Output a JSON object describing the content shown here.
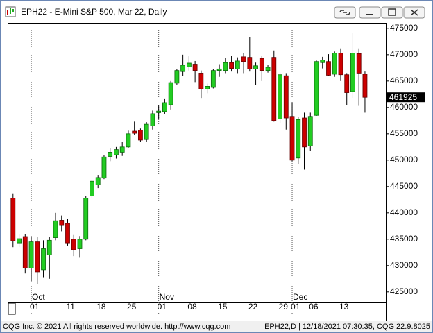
{
  "chart_data": {
    "type": "candlestick",
    "title": "EPH22 - E-Mini S&P 500, Mar 22, Daily",
    "categories": [
      null,
      null,
      null,
      "01",
      null,
      null,
      null,
      null,
      null,
      "11",
      null,
      null,
      null,
      null,
      "18",
      null,
      null,
      null,
      null,
      "25",
      null,
      null,
      null,
      null,
      "01",
      null,
      null,
      null,
      null,
      "08",
      null,
      null,
      null,
      null,
      "15",
      null,
      null,
      null,
      null,
      "22",
      null,
      null,
      null,
      null,
      "29",
      null,
      "01",
      null,
      null,
      "06",
      null,
      null,
      null,
      null,
      "13",
      null,
      null,
      null,
      null
    ],
    "month_labels": [
      null,
      null,
      null,
      "Oct",
      null,
      null,
      null,
      null,
      null,
      null,
      null,
      null,
      null,
      null,
      null,
      null,
      null,
      null,
      null,
      null,
      null,
      null,
      null,
      null,
      "Nov",
      null,
      null,
      null,
      null,
      null,
      null,
      null,
      null,
      null,
      null,
      null,
      null,
      null,
      null,
      null,
      null,
      null,
      null,
      null,
      null,
      null,
      "Dec",
      null,
      null,
      null,
      null,
      null,
      null,
      null,
      null,
      null,
      null,
      null,
      null
    ],
    "open": [
      442800,
      434300,
      435500,
      429500,
      434500,
      429200,
      432000,
      435300,
      438600,
      438000,
      435000,
      433200,
      435000,
      443200,
      445300,
      446600,
      450700,
      451000,
      451500,
      452500,
      455500,
      455700,
      453900,
      456500,
      459000,
      459200,
      460500,
      464600,
      466800,
      467700,
      468200,
      466500,
      463500,
      463800,
      467000,
      467000,
      468500,
      467300,
      469600,
      469500,
      467300,
      469300,
      467000,
      469500,
      457800,
      466000,
      458300,
      450400,
      458000,
      452700,
      458500,
      468500,
      468700,
      466300,
      470300,
      466200,
      463000,
      470200,
      466300
    ],
    "high": [
      443700,
      436000,
      436000,
      435500,
      435500,
      434800,
      435500,
      440000,
      439500,
      438900,
      435800,
      435600,
      443200,
      446300,
      447200,
      451000,
      452300,
      452500,
      453500,
      455600,
      457300,
      456000,
      457200,
      459400,
      460400,
      461700,
      465000,
      467300,
      470000,
      469700,
      468800,
      467000,
      464500,
      467300,
      468200,
      469400,
      469800,
      469500,
      470300,
      473300,
      468500,
      469700,
      468000,
      470800,
      466600,
      466500,
      461000,
      458200,
      459000,
      459000,
      468900,
      469600,
      470100,
      470600,
      471200,
      466500,
      474100,
      471200,
      466800
    ],
    "low": [
      433500,
      433500,
      428500,
      427000,
      426500,
      427800,
      427500,
      434800,
      436500,
      433800,
      431800,
      431500,
      434800,
      442800,
      444700,
      446400,
      449800,
      450300,
      450800,
      452300,
      454800,
      453500,
      453500,
      455800,
      457800,
      458800,
      459600,
      464300,
      466000,
      467000,
      464800,
      461800,
      462700,
      463600,
      465800,
      466500,
      466800,
      466500,
      466500,
      466800,
      464200,
      465000,
      466600,
      457300,
      457000,
      455800,
      449800,
      449200,
      448200,
      451800,
      458400,
      467400,
      466000,
      465800,
      465000,
      460500,
      461800,
      460300,
      459000
    ],
    "close": [
      434700,
      435100,
      429500,
      434500,
      428800,
      433200,
      434800,
      438500,
      437600,
      434300,
      433000,
      435000,
      442800,
      446000,
      446700,
      450600,
      451500,
      452000,
      452500,
      455000,
      455100,
      453800,
      456800,
      458800,
      459300,
      460900,
      464700,
      467000,
      468000,
      468400,
      467000,
      463500,
      464000,
      467000,
      467300,
      468500,
      467400,
      468800,
      468700,
      467300,
      467900,
      467000,
      467600,
      457500,
      466200,
      458000,
      450000,
      457700,
      452500,
      458300,
      468700,
      469000,
      466100,
      470300,
      466200,
      462800,
      470300,
      466500,
      461925
    ],
    "up_color": "#22cc22",
    "down_color": "#cc0000",
    "ylim": [
      423000,
      475900
    ],
    "yticks": [
      425000,
      430000,
      435000,
      440000,
      445000,
      450000,
      455000,
      460000,
      465000,
      470000,
      475000
    ]
  },
  "footer": {
    "left": "CQG Inc. © 2021 All rights reserved worldwide. http://www.cqg.com",
    "right": "EPH22,D | 12/18/2021 07:30:35, CQG 22.9.8025"
  }
}
